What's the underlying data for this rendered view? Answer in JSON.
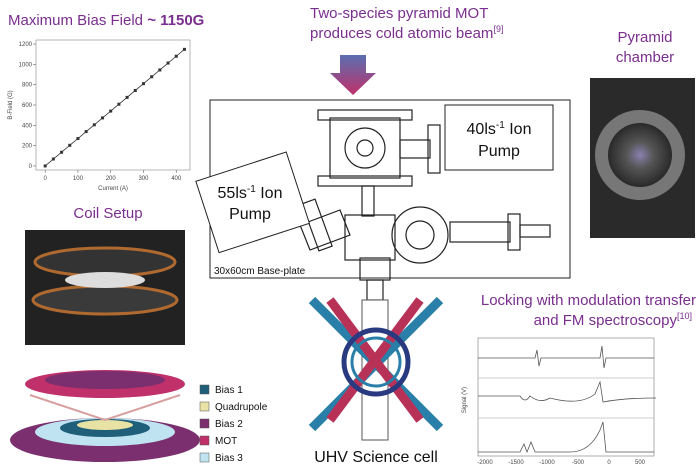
{
  "header": {
    "bias_title": "Maximum Bias Field",
    "bias_title_value": "~ 1150G",
    "mot_title": "Two-species pyramid MOT",
    "mot_title_2": "produces cold atomic beam",
    "mot_ref": "[9]",
    "pyramid_title": "Pyramid",
    "pyramid_title_2": "chamber",
    "coil_title": "Coil Setup",
    "locking_title": "Locking with modulation transfer",
    "locking_title_2": "and FM spectroscopy",
    "locking_ref": "[10]",
    "cell_title": "UHV Science cell"
  },
  "apparatus": {
    "pump_40": "40ls",
    "pump_40_exp": "-1",
    "pump_40_unit": "Ion",
    "pump_40_unit_2": "Pump",
    "pump_55": "55ls",
    "pump_55_exp": "-1",
    "pump_55_unit": "Ion",
    "pump_55_unit_2": "Pump",
    "baseplate": "30x60cm Base-plate"
  },
  "legend": [
    {
      "name": "Bias 1",
      "color": "#1f5f7a"
    },
    {
      "name": "Quadrupole",
      "color": "#e8e2a4"
    },
    {
      "name": "Bias 2",
      "color": "#7b2f6e"
    },
    {
      "name": "MOT",
      "color": "#c0306a"
    },
    {
      "name": "Bias 3",
      "color": "#bfe3f0"
    }
  ],
  "spectrum": {
    "ylabel": "Signal (V)",
    "xticks": [
      "-2000",
      "-1500",
      "-1000",
      "-500",
      "0",
      "500"
    ]
  },
  "chart_data": {
    "type": "line",
    "xlabel": "Current (A)",
    "ylabel": "B-Field (G)",
    "color": "#333333",
    "x": [
      0,
      25,
      50,
      75,
      100,
      125,
      150,
      175,
      200,
      225,
      250,
      275,
      300,
      325,
      350,
      375,
      400,
      425
    ],
    "values": [
      0,
      68,
      135,
      203,
      270,
      338,
      405,
      473,
      540,
      608,
      675,
      743,
      810,
      878,
      945,
      1013,
      1080,
      1148
    ],
    "xlim": [
      -28,
      442
    ],
    "ylim": [
      -40,
      1240
    ],
    "xticks": [
      0,
      100,
      200,
      300,
      400
    ],
    "yticks": [
      0,
      200,
      400,
      600,
      800,
      1000,
      1200
    ]
  }
}
